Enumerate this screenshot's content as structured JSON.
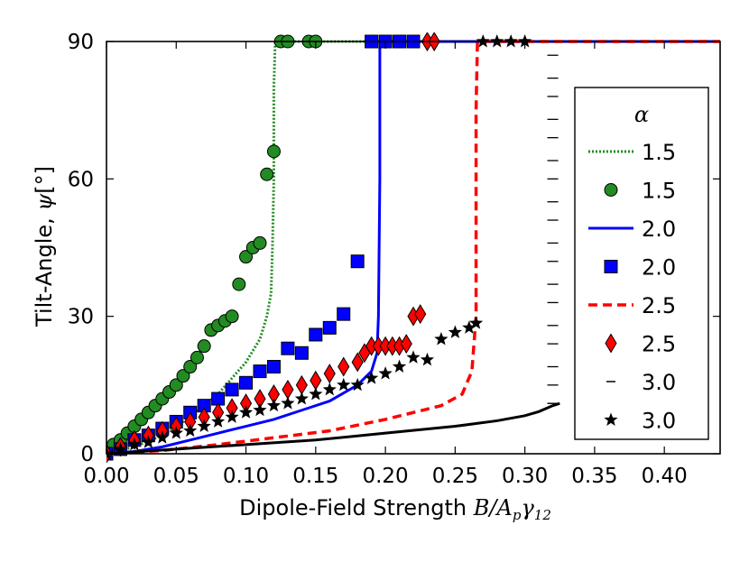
{
  "chart_data": {
    "type": "line",
    "xlabel": "Dipole-Field Strength ",
    "xlabel_math": {
      "base": "B/A",
      "sub1": "p",
      "mid": "γ",
      "sub2": "12"
    },
    "ylabel": "Tilt-Angle, ",
    "ylabel_math": {
      "base": "ψ",
      "unit": "[°]"
    },
    "xlim": [
      0.0,
      0.44
    ],
    "ylim": [
      0,
      90
    ],
    "xticks": [
      "0.00",
      "0.05",
      "0.10",
      "0.15",
      "0.20",
      "0.25",
      "0.30",
      "0.35",
      "0.40"
    ],
    "yticks": [
      "0",
      "30",
      "60",
      "90"
    ],
    "grid": false,
    "legend": {
      "title": "α",
      "placement": "right",
      "entries": [
        "1.5",
        "1.5",
        "2.0",
        "2.0",
        "2.5",
        "2.5",
        "3.0",
        "3.0"
      ]
    },
    "series": [
      {
        "name": "1.5",
        "kind": "line",
        "style": "dotted",
        "color": "#228b22",
        "x": [
          0.0,
          0.02,
          0.04,
          0.06,
          0.08,
          0.1,
          0.11,
          0.115,
          0.118,
          0.119,
          0.12,
          0.12,
          0.121,
          0.44
        ],
        "y": [
          0,
          1.5,
          4,
          8,
          13,
          20,
          25,
          30,
          35,
          45,
          60,
          80,
          90,
          90
        ]
      },
      {
        "name": "1.5",
        "kind": "markers",
        "marker": "circle",
        "color": "#228b22",
        "x": [
          0.0,
          0.005,
          0.01,
          0.015,
          0.02,
          0.025,
          0.03,
          0.035,
          0.04,
          0.045,
          0.05,
          0.055,
          0.06,
          0.065,
          0.07,
          0.075,
          0.08,
          0.085,
          0.09,
          0.095,
          0.1,
          0.105,
          0.11,
          0.115,
          0.12,
          0.125,
          0.13,
          0.145,
          0.15
        ],
        "y": [
          1,
          2,
          3,
          4.5,
          6,
          7.5,
          9,
          10.5,
          12,
          13.5,
          15,
          17,
          19,
          21,
          23.5,
          27,
          28,
          29,
          30,
          37,
          43,
          45,
          46,
          61,
          66,
          90,
          90,
          90,
          90
        ]
      },
      {
        "name": "2.0",
        "kind": "line",
        "style": "solid",
        "color": "#0000ff",
        "x": [
          0.0,
          0.02,
          0.04,
          0.06,
          0.08,
          0.1,
          0.12,
          0.14,
          0.16,
          0.18,
          0.19,
          0.194,
          0.195,
          0.196,
          0.196,
          0.44
        ],
        "y": [
          0,
          0.5,
          1.5,
          3,
          4.5,
          6,
          7.5,
          9.5,
          11.5,
          15,
          18,
          22,
          30,
          60,
          90,
          90
        ]
      },
      {
        "name": "2.0",
        "kind": "markers",
        "marker": "square",
        "color": "#0000ff",
        "x": [
          0.0,
          0.01,
          0.02,
          0.03,
          0.04,
          0.05,
          0.06,
          0.07,
          0.08,
          0.09,
          0.1,
          0.11,
          0.12,
          0.13,
          0.14,
          0.15,
          0.16,
          0.17,
          0.18,
          0.19,
          0.2,
          0.21,
          0.22
        ],
        "y": [
          0,
          1,
          3,
          4,
          5.5,
          7,
          9,
          10.5,
          12,
          14,
          15.5,
          18,
          19,
          23,
          22,
          26,
          27.5,
          30.5,
          42,
          90,
          90,
          90,
          90
        ]
      },
      {
        "name": "2.5",
        "kind": "line",
        "style": "dashed",
        "color": "#ff0000",
        "x": [
          0.0,
          0.04,
          0.08,
          0.12,
          0.16,
          0.2,
          0.24,
          0.255,
          0.262,
          0.265,
          0.265,
          0.266,
          0.44
        ],
        "y": [
          0,
          0.7,
          2,
          3.5,
          5,
          7.5,
          10.5,
          13,
          18,
          30,
          75,
          90,
          90
        ]
      },
      {
        "name": "2.5",
        "kind": "markers",
        "marker": "diamond",
        "color": "#ff0000",
        "x": [
          0.0,
          0.01,
          0.02,
          0.03,
          0.04,
          0.05,
          0.06,
          0.07,
          0.08,
          0.09,
          0.1,
          0.11,
          0.12,
          0.13,
          0.14,
          0.15,
          0.16,
          0.17,
          0.18,
          0.185,
          0.19,
          0.195,
          0.2,
          0.205,
          0.21,
          0.215,
          0.22,
          0.225,
          0.23,
          0.235
        ],
        "y": [
          0,
          1.5,
          3,
          4,
          5,
          6,
          7,
          8,
          9,
          10,
          11,
          12,
          13,
          14,
          15,
          16,
          17.5,
          19,
          20,
          22,
          23.5,
          23.5,
          23.5,
          23.5,
          23.5,
          24,
          30,
          30.5,
          90,
          90
        ]
      },
      {
        "name": "3.0",
        "kind": "line",
        "style": "solid",
        "color": "#000000",
        "x": [
          0.0,
          0.05,
          0.1,
          0.15,
          0.2,
          0.25,
          0.28,
          0.3,
          0.31,
          0.32,
          0.325
        ],
        "y": [
          0,
          1,
          2,
          3,
          4.5,
          6,
          7.2,
          8.3,
          9.2,
          10.5,
          11
        ]
      },
      {
        "name": "3.0",
        "kind": "markers",
        "marker": "star",
        "color": "#000000",
        "x": [
          0.0,
          0.01,
          0.02,
          0.03,
          0.04,
          0.05,
          0.06,
          0.07,
          0.08,
          0.09,
          0.1,
          0.11,
          0.12,
          0.13,
          0.14,
          0.15,
          0.16,
          0.17,
          0.18,
          0.19,
          0.2,
          0.21,
          0.22,
          0.23,
          0.24,
          0.25,
          0.26,
          0.265,
          0.27,
          0.28,
          0.29,
          0.3
        ],
        "y": [
          0,
          1,
          2,
          2.5,
          3.5,
          4.5,
          5,
          6,
          7,
          8,
          9,
          9.5,
          10.5,
          11,
          12,
          13,
          14,
          15,
          15,
          16.5,
          17.5,
          19,
          21,
          20.5,
          25,
          26.5,
          27.5,
          28.5,
          90,
          90,
          90,
          90
        ]
      }
    ],
    "extra_markers": {
      "name": "3.0",
      "marker": "hline",
      "color": "#000000",
      "x": [
        0.32,
        0.32,
        0.32,
        0.32,
        0.32,
        0.32,
        0.32,
        0.32,
        0.32,
        0.32,
        0.32,
        0.32,
        0.32,
        0.32,
        0.32,
        0.32,
        0.32,
        0.32,
        0.32
      ],
      "y": [
        87,
        82,
        78,
        73,
        69,
        64,
        60,
        55,
        51,
        46,
        42,
        37,
        33,
        28,
        24,
        19,
        15,
        11,
        11
      ]
    }
  }
}
